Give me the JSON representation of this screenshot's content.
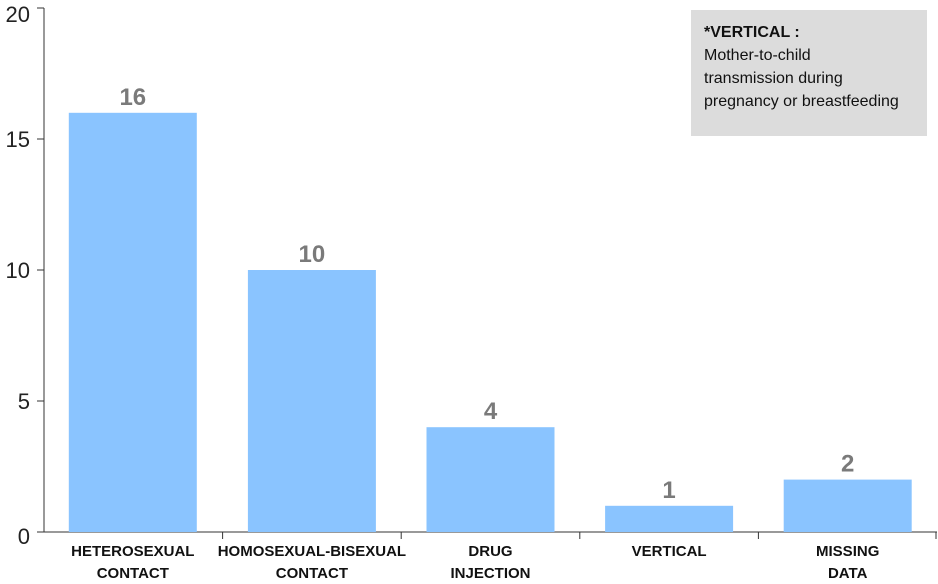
{
  "chart_data": {
    "type": "bar",
    "categories": [
      [
        "HETEROSEXUAL",
        "CONTACT"
      ],
      [
        "HOMOSEXUAL-BISEXUAL",
        "CONTACT"
      ],
      [
        "DRUG",
        "INJECTION"
      ],
      [
        "VERTICAL"
      ],
      [
        "MISSING",
        "DATA"
      ]
    ],
    "values": [
      16,
      10,
      4,
      1,
      2
    ],
    "value_labels": [
      "16",
      "10",
      "4",
      "1",
      "2"
    ],
    "yticks": [
      0,
      5,
      10,
      15,
      20
    ],
    "ylim": [
      0,
      20
    ],
    "grid": false,
    "bar_color": "#8ac4ff",
    "value_label_color": "#7a7a7a"
  },
  "note": {
    "title": "*VERTICAL :",
    "lines": [
      "Mother-to-child",
      "transmission during",
      "pregnancy or breastfeeding"
    ],
    "background": "#dcdcdc"
  }
}
